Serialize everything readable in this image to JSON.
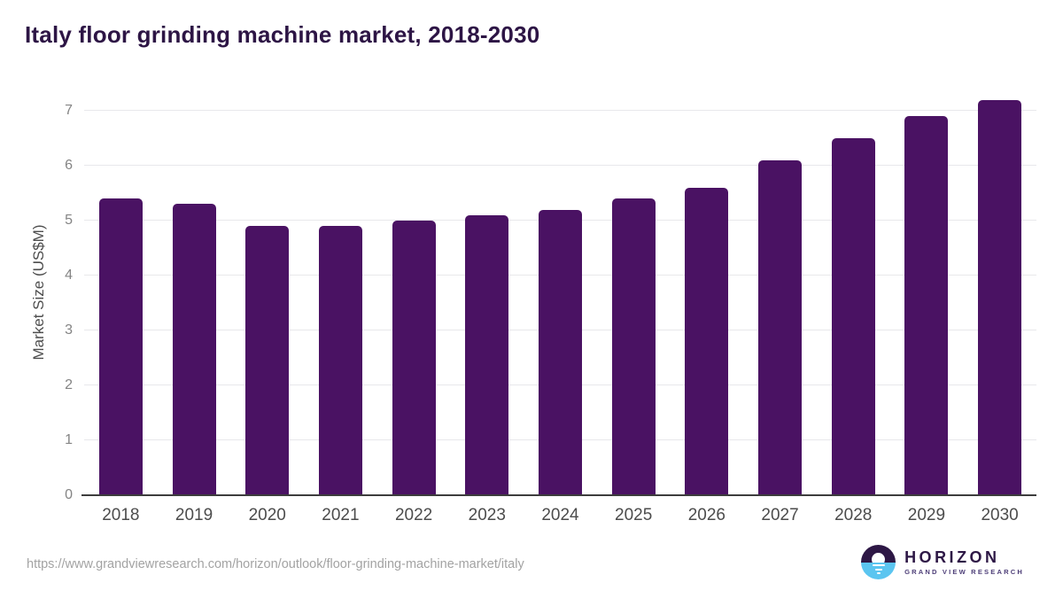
{
  "header": {
    "title": "Italy floor grinding machine market, 2018-2030"
  },
  "chart_data": {
    "type": "bar",
    "title": "Italy floor grinding machine market, 2018-2030",
    "categories": [
      "2018",
      "2019",
      "2020",
      "2021",
      "2022",
      "2023",
      "2024",
      "2025",
      "2026",
      "2027",
      "2028",
      "2029",
      "2030"
    ],
    "values": [
      5.4,
      5.3,
      4.9,
      4.9,
      5.0,
      5.1,
      5.2,
      5.4,
      5.6,
      6.1,
      6.5,
      6.9,
      7.2
    ],
    "xlabel": "",
    "ylabel": "Market Size (US$M)",
    "ylim": [
      0,
      7.4
    ],
    "yticks": [
      0,
      1,
      2,
      3,
      4,
      5,
      6,
      7
    ],
    "grid": true,
    "legend_position": "none",
    "bar_color": "#4a1263"
  },
  "footer": {
    "source_url": "https://www.grandviewresearch.com/horizon/outlook/floor-grinding-machine-market/italy",
    "logo_title": "HORIZON",
    "logo_subtitle": "GRAND VIEW RESEARCH"
  },
  "colors": {
    "bar": "#4a1263",
    "title": "#2d1545",
    "axis_line": "#3d3d3d",
    "gridline": "#e8e8eb",
    "y_tick": "#848484",
    "x_tick": "#4c4c4c",
    "url": "#a3a3a3",
    "logo_dark": "#2d1745",
    "logo_blue": "#5bc5f0",
    "logo_subtext": "#4d3e78"
  }
}
